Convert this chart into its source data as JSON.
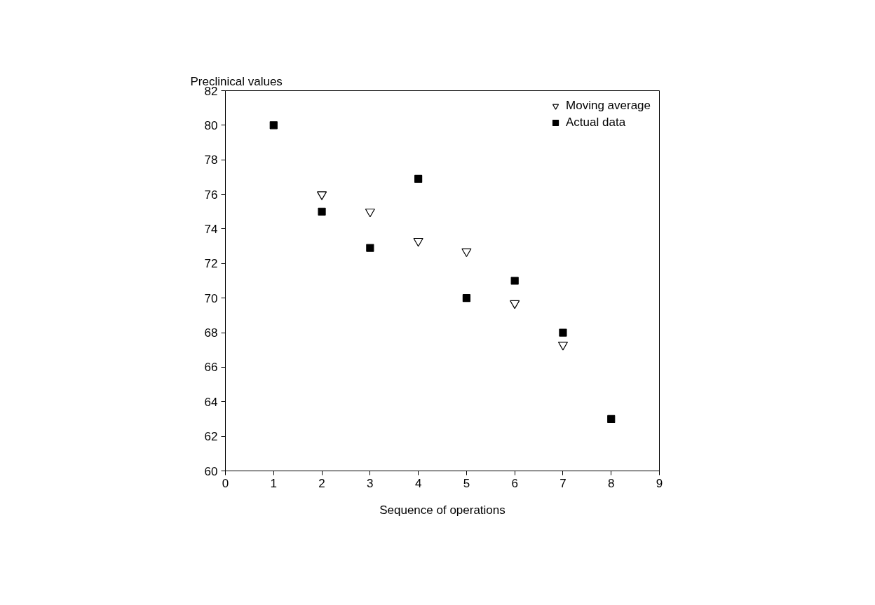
{
  "chart_data": {
    "type": "scatter",
    "xlabel": "Sequence of operations",
    "ylabel": "Preclinical values",
    "xlim": [
      0,
      9
    ],
    "xticks": [
      0,
      1,
      2,
      3,
      4,
      5,
      6,
      7,
      8,
      9
    ],
    "ylim": [
      60,
      82
    ],
    "yticks": [
      60,
      62,
      64,
      66,
      68,
      70,
      72,
      74,
      76,
      78,
      80,
      82
    ],
    "grid": false,
    "legend": "top right",
    "series": [
      {
        "name": "Moving average",
        "color": "#000000",
        "marker": "triangle",
        "x": [
          2,
          3,
          4,
          5,
          6,
          7
        ],
        "values": [
          76,
          75,
          73.3,
          72.7,
          69.7,
          67.3
        ]
      },
      {
        "name": "Actual data",
        "color": "#000000",
        "marker": "square",
        "x": [
          1,
          2,
          3,
          4,
          5,
          6,
          7,
          8
        ],
        "values": [
          80,
          75,
          72.9,
          76.9,
          70,
          71,
          68,
          63
        ]
      }
    ]
  }
}
